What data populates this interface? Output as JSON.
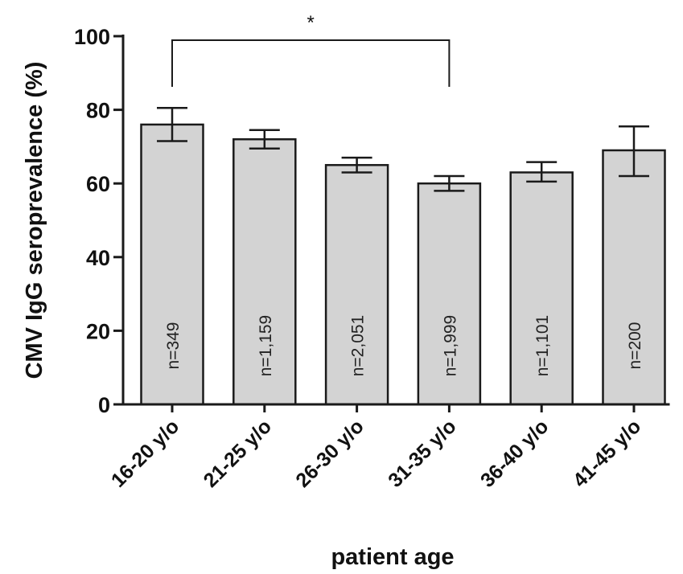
{
  "chart_data": {
    "type": "bar",
    "categories": [
      "16-20 y/o",
      "21-25 y/o",
      "26-30 y/o",
      "31-35 y/o",
      "36-40 y/o",
      "41-45 y/o"
    ],
    "values": [
      76,
      72,
      65,
      60,
      63,
      69
    ],
    "error_low": [
      71.5,
      69.5,
      63,
      58,
      60.5,
      62
    ],
    "error_high": [
      80.5,
      74.5,
      67,
      62,
      65.8,
      75.5
    ],
    "n_labels": [
      "n=349",
      "n=1,159",
      "n=2,051",
      "n=1,999",
      "n=1,101",
      "n=200"
    ],
    "xlabel": "patient age",
    "ylabel": "CMV IgG seroprevalence  (%)",
    "ylim": [
      0,
      100
    ],
    "yticks": [
      0,
      20,
      40,
      60,
      80,
      100
    ],
    "significance": {
      "from": "16-20 y/o",
      "to": "31-35 y/o",
      "label": "*"
    },
    "colors": {
      "bar_fill": "#d3d3d3",
      "stroke": "#1a1a1a"
    }
  }
}
